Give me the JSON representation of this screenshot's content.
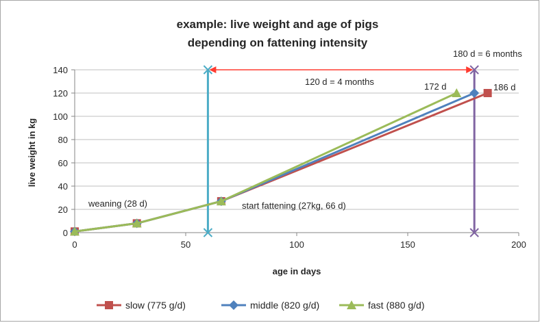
{
  "chart_data": {
    "type": "line",
    "title_lines": [
      "example: live weight and age of pigs",
      "depending on fattening intensity"
    ],
    "xlabel": "age in days",
    "ylabel": "live weight in kg",
    "xlim": [
      0,
      200
    ],
    "ylim": [
      0,
      140
    ],
    "xticks": [
      0,
      50,
      100,
      150,
      200
    ],
    "yticks": [
      0,
      20,
      40,
      60,
      80,
      100,
      120,
      140
    ],
    "grid": "horizontal",
    "legend_position": "bottom",
    "series": [
      {
        "name": "slow (775 g/d)",
        "color": "#c0504d",
        "marker": "square",
        "x": [
          0,
          28,
          66,
          186
        ],
        "y": [
          1,
          8,
          27,
          120
        ]
      },
      {
        "name": "middle (820 g/d)",
        "color": "#4f81bd",
        "marker": "diamond",
        "x": [
          0,
          28,
          66,
          180
        ],
        "y": [
          1,
          8,
          27,
          120
        ]
      },
      {
        "name": "fast (880 g/d)",
        "color": "#9bbb59",
        "marker": "triangle",
        "x": [
          0,
          28,
          66,
          172
        ],
        "y": [
          1,
          8,
          27,
          120
        ]
      }
    ],
    "vlines": [
      {
        "x": 60,
        "color": "#4bacc6"
      },
      {
        "x": 180,
        "color": "#8064a2"
      }
    ],
    "span_arrow": {
      "from": 60,
      "to": 180,
      "y": 140,
      "color": "#ff3b30"
    },
    "annotations": [
      {
        "text": "weaning (28 d)",
        "color": "#262626"
      },
      {
        "text": "start fattening (27kg, 66 d)",
        "color": "#262626"
      },
      {
        "text": "120 d = 4 months",
        "color": "#ff3b30"
      },
      {
        "text": "180 d = 6 months",
        "color": "#262626"
      },
      {
        "text": "172 d",
        "color": "#6aa12a"
      },
      {
        "text": "186 d",
        "color": "#c0504d"
      }
    ]
  }
}
